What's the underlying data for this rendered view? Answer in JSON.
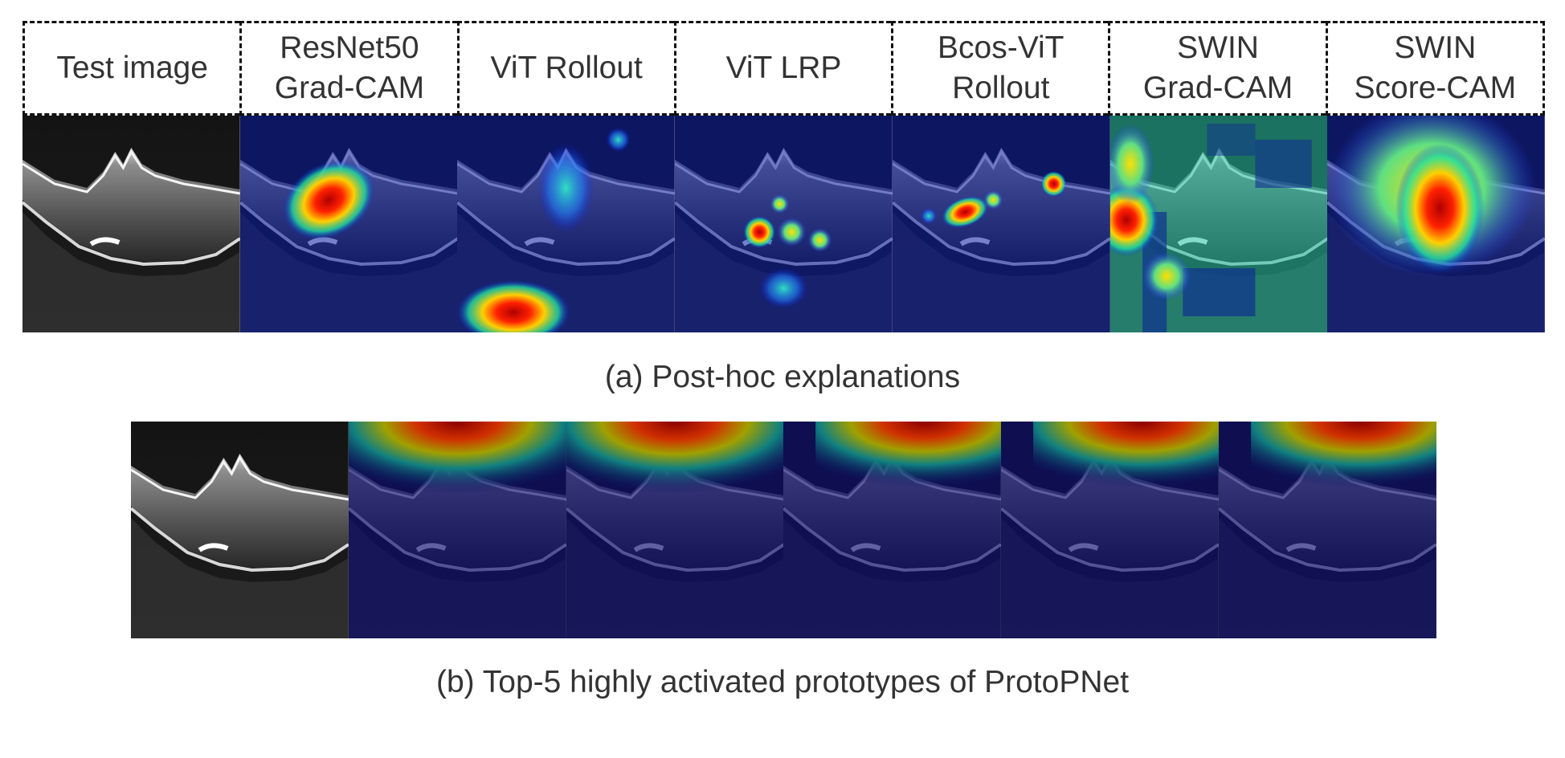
{
  "figure": {
    "columns": [
      {
        "label": "Test image"
      },
      {
        "label": "ResNet50\nGrad-CAM"
      },
      {
        "label": "ViT Rollout"
      },
      {
        "label": "ViT LRP"
      },
      {
        "label": "Bcos-ViT\nRollout"
      },
      {
        "label": "SWIN\nGrad-CAM"
      },
      {
        "label": "SWIN\nScore-CAM"
      }
    ],
    "caption_a": "(a) Post-hoc explanations",
    "caption_b": "(b) Top-5 highly activated prototypes of ProtoPNet",
    "row_a_panels": [
      "oct-test-image",
      "resnet50-gradcam-heatmap",
      "vit-rollout-heatmap",
      "vit-lrp-heatmap",
      "bcos-vit-rollout-heatmap",
      "swin-gradcam-heatmap",
      "swin-scorecam-heatmap"
    ],
    "row_b_panels": [
      "oct-test-image",
      "prototype-1-heatmap",
      "prototype-2-heatmap",
      "prototype-3-heatmap",
      "prototype-4-heatmap",
      "prototype-5-heatmap"
    ]
  }
}
